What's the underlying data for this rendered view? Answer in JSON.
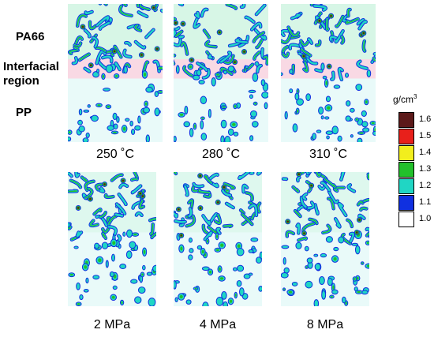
{
  "labels": {
    "top": "PA66",
    "middle_line1": "Interfacial",
    "middle_line2": "region",
    "bottom": "PP"
  },
  "temperature_panels": [
    "250 ˚C",
    "280 ˚C",
    "310 ˚C"
  ],
  "pressure_panels": [
    "2 MPa",
    "4 MPa",
    "8 MPa"
  ],
  "colorbar": {
    "unit_base": "g/cm",
    "unit_exp": "3",
    "ticks": [
      "1.6",
      "1.5",
      "1.4",
      "1.3",
      "1.2",
      "1.1",
      "1.0"
    ],
    "colors": [
      "#5c1a1a",
      "#e8201b",
      "#f2ee1d",
      "#22c02b",
      "#20d6c4",
      "#1030e0",
      "#ffffff"
    ]
  },
  "panel_backgrounds": {
    "pa66_zone": "#d7f6e6",
    "interface_zone": "#f9d9e4",
    "pp_zone": "#e9faf9"
  }
}
